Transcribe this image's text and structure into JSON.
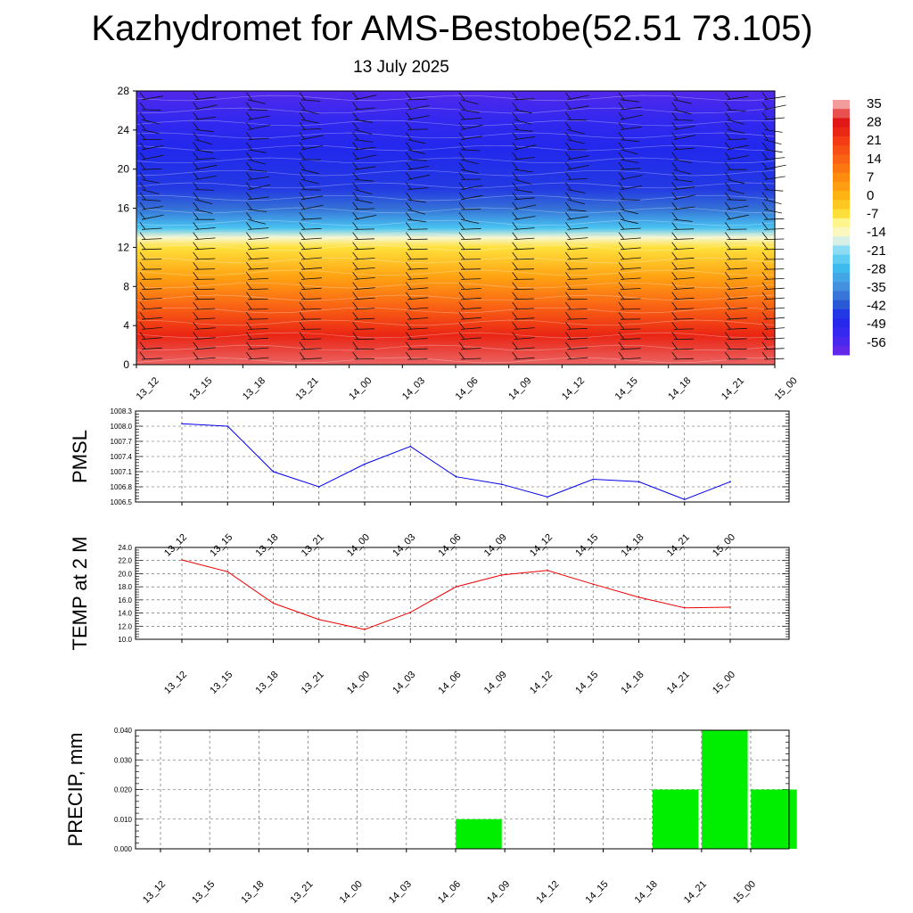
{
  "title": "Kazhydromet for AMS-Bestobe(52.51 73.105)",
  "subtitle": "13 July 2025",
  "colors": {
    "pressure_line": "#0000ee",
    "temperature_line": "#ee0000",
    "precip_bar": "#00ee00"
  },
  "chart_data": [
    {
      "type": "heatmap",
      "title": "",
      "x": [
        "13_12",
        "13_15",
        "13_18",
        "13_21",
        "14_00",
        "14_03",
        "14_06",
        "14_09",
        "14_12",
        "14_15",
        "14_18",
        "14_21",
        "15_00"
      ],
      "ylim": [
        0,
        28
      ],
      "yticks": [
        0,
        4,
        8,
        12,
        16,
        20,
        24,
        28
      ],
      "colorbar": {
        "labels": [
          "35",
          "28",
          "21",
          "14",
          "7",
          "0",
          "-7",
          "-14",
          "-21",
          "-28",
          "-35",
          "-42",
          "-49",
          "-56"
        ],
        "range": [
          -60,
          38
        ]
      },
      "temperature_profile": [
        {
          "level": 0,
          "value": 34
        },
        {
          "level": 3,
          "value": 26
        },
        {
          "level": 6,
          "value": 15
        },
        {
          "level": 9,
          "value": 4
        },
        {
          "level": 12,
          "value": -6
        },
        {
          "level": 13,
          "value": -14
        },
        {
          "level": 14,
          "value": -25
        },
        {
          "level": 16,
          "value": -38
        },
        {
          "level": 18,
          "value": -44
        },
        {
          "level": 22,
          "value": -47
        },
        {
          "level": 25,
          "value": -51
        },
        {
          "level": 28,
          "value": -56
        }
      ],
      "wind_barbs": "shown"
    },
    {
      "type": "line",
      "ylabel": "PMSL",
      "categories": [
        "13_12",
        "13_15",
        "13_18",
        "13_21",
        "14_00",
        "14_03",
        "14_06",
        "14_09",
        "14_12",
        "14_15",
        "14_18",
        "14_21",
        "15_00"
      ],
      "values": [
        1008.05,
        1008.0,
        1007.1,
        1006.8,
        1007.25,
        1007.6,
        1007.0,
        1006.85,
        1006.6,
        1006.95,
        1006.9,
        1006.55,
        1006.9
      ],
      "ylim": [
        1006.5,
        1008.3
      ],
      "yticks": [
        "1006.5",
        "1006.8",
        "1007.1",
        "1007.4",
        "1007.7",
        "1008.0",
        "1008.3"
      ],
      "grid": true
    },
    {
      "type": "line",
      "ylabel": "TEMP at 2 M",
      "categories": [
        "13_12",
        "13_15",
        "13_18",
        "13_21",
        "14_00",
        "14_03",
        "14_06",
        "14_09",
        "14_12",
        "14_15",
        "14_18",
        "14_21",
        "15_00"
      ],
      "values": [
        22.1,
        20.3,
        15.5,
        13.0,
        11.5,
        14.1,
        18.0,
        19.8,
        20.5,
        18.4,
        16.4,
        14.8,
        14.9
      ],
      "ylim": [
        10.0,
        24.0
      ],
      "yticks": [
        "10.0",
        "12.0",
        "14.0",
        "16.0",
        "18.0",
        "20.0",
        "22.0",
        "24.0"
      ],
      "grid": true
    },
    {
      "type": "bar",
      "ylabel": "PRECIP, mm",
      "categories": [
        "13_12",
        "13_15",
        "13_18",
        "13_21",
        "14_00",
        "14_03",
        "14_06",
        "14_09",
        "14_12",
        "14_15",
        "14_18",
        "14_21",
        "15_00"
      ],
      "values": [
        0,
        0,
        0,
        0,
        0,
        0,
        0.01,
        0,
        0,
        0,
        0.02,
        0.04,
        0.02
      ],
      "ylim": [
        0,
        0.04
      ],
      "yticks": [
        "0.000",
        "0.010",
        "0.020",
        "0.030",
        "0.040"
      ],
      "grid": true
    }
  ]
}
